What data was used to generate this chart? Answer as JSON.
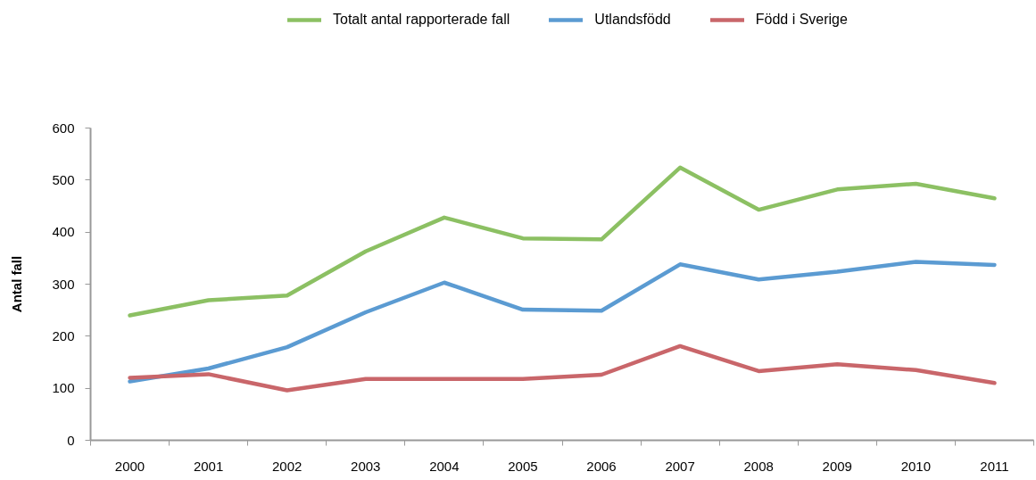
{
  "chart_data": {
    "type": "line",
    "ylabel": "Antal fall",
    "categories": [
      "2000",
      "2001",
      "2002",
      "2003",
      "2004",
      "2005",
      "2006",
      "2007",
      "2008",
      "2009",
      "2010",
      "2011"
    ],
    "series": [
      {
        "name": "Totalt antal rapporterade fall",
        "color": "#8cc063",
        "values": [
          240,
          269,
          278,
          363,
          428,
          388,
          386,
          524,
          443,
          482,
          493,
          465
        ]
      },
      {
        "name": "Utlandsfödd",
        "color": "#5b9bd2",
        "values": [
          113,
          138,
          179,
          246,
          303,
          251,
          249,
          338,
          309,
          324,
          343,
          337
        ]
      },
      {
        "name": "Född i Sverige",
        "color": "#c9666a",
        "values": [
          120,
          127,
          96,
          118,
          118,
          118,
          126,
          181,
          133,
          146,
          135,
          110
        ]
      }
    ],
    "ylim": [
      0,
      600
    ],
    "yticks": [
      0,
      100,
      200,
      300,
      400,
      500,
      600
    ],
    "grid": false,
    "legend": "top",
    "marker": "none",
    "line_style": "solid"
  }
}
